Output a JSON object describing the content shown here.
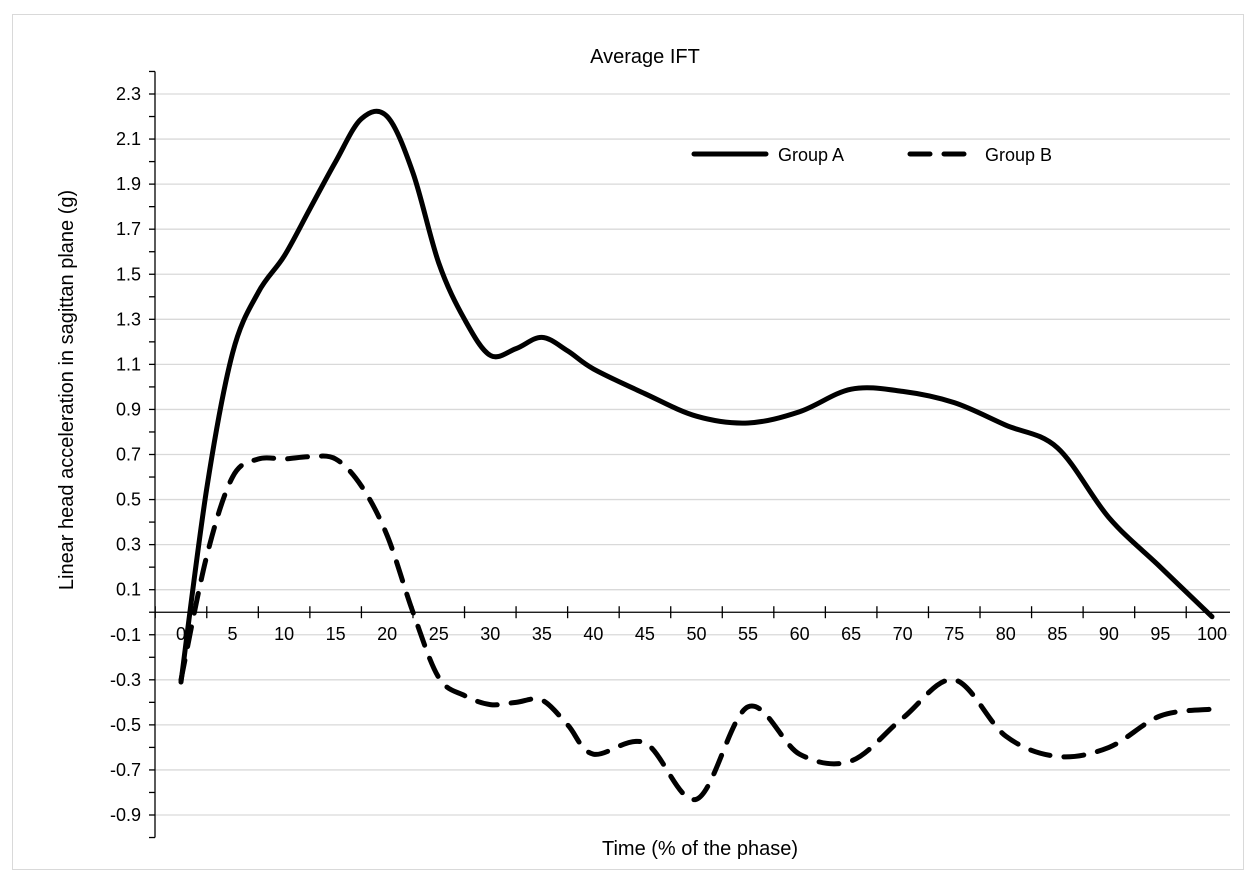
{
  "chart_data": {
    "type": "line",
    "title": "Average IFT",
    "xlabel": "Time (% of the phase)",
    "ylabel": "Linear head acceleration in sagittan plane (g)",
    "xlim": [
      0,
      100
    ],
    "ylim": [
      -0.9,
      2.3
    ],
    "y_ticks": [
      -0.9,
      -0.7,
      -0.5,
      -0.3,
      -0.1,
      0.1,
      0.3,
      0.5,
      0.7,
      0.9,
      1.1,
      1.3,
      1.5,
      1.7,
      1.9,
      2.1,
      2.3
    ],
    "y_tick_labels": [
      "-0.9",
      "-0.7",
      "-0.5",
      "-0.3",
      "-0.1",
      "0.1",
      "0.3",
      "0.5",
      "0.7",
      "0.9",
      "1.1",
      "1.3",
      "1.5",
      "1.7",
      "1.9",
      "2.1",
      "2.3"
    ],
    "x_ticks": [
      0,
      5,
      10,
      15,
      20,
      25,
      30,
      35,
      40,
      45,
      50,
      55,
      60,
      65,
      70,
      75,
      80,
      85,
      90,
      95,
      100
    ],
    "x_tick_labels": [
      "0",
      "5",
      "10",
      "15",
      "20",
      "25",
      "30",
      "35",
      "40",
      "45",
      "50",
      "55",
      "60",
      "65",
      "70",
      "75",
      "80",
      "85",
      "90",
      "95",
      "100"
    ],
    "grid": true,
    "legend_position": "top-right",
    "series": [
      {
        "name": "Group A",
        "style": "solid",
        "color": "#000000",
        "x": [
          0,
          2.5,
          5,
          7.5,
          10,
          12.5,
          15,
          17.5,
          20,
          22.5,
          25,
          27.5,
          30,
          32.5,
          35,
          37.5,
          40,
          45,
          50,
          55,
          60,
          65,
          70,
          75,
          80,
          85,
          90,
          95,
          100
        ],
        "y": [
          -0.31,
          0.55,
          1.15,
          1.42,
          1.58,
          1.79,
          2.0,
          2.19,
          2.2,
          1.95,
          1.55,
          1.3,
          1.14,
          1.17,
          1.22,
          1.16,
          1.08,
          0.97,
          0.87,
          0.84,
          0.89,
          0.99,
          0.98,
          0.93,
          0.83,
          0.73,
          0.42,
          0.2,
          -0.02
        ]
      },
      {
        "name": "Group B",
        "style": "dashed",
        "color": "#000000",
        "x": [
          0,
          2.5,
          5,
          7.5,
          10,
          12.5,
          15,
          17.5,
          20,
          22.5,
          25,
          27.5,
          30,
          32.5,
          35,
          37.5,
          40,
          45,
          50,
          55,
          60,
          65,
          70,
          75,
          80,
          85,
          90,
          95,
          100
        ],
        "y": [
          -0.3,
          0.25,
          0.6,
          0.68,
          0.68,
          0.69,
          0.68,
          0.56,
          0.34,
          0.0,
          -0.29,
          -0.37,
          -0.41,
          -0.4,
          -0.39,
          -0.5,
          -0.63,
          -0.58,
          -0.83,
          -0.42,
          -0.63,
          -0.66,
          -0.47,
          -0.3,
          -0.55,
          -0.64,
          -0.6,
          -0.46,
          -0.43
        ]
      }
    ]
  }
}
